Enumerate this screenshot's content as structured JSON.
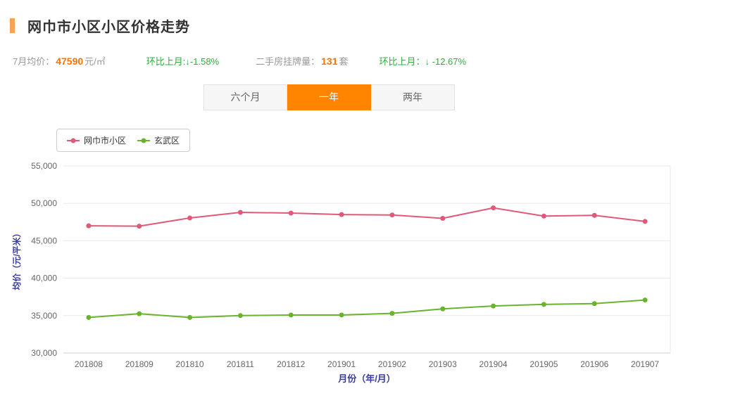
{
  "page": {
    "title": "网巾市小区小区价格走势"
  },
  "stats": {
    "avg_price_label": "7月均价：",
    "avg_price_value": "47590",
    "avg_price_unit": "元/㎡",
    "mom_price_label": "环比上月:",
    "mom_price_value": "↓-1.58%",
    "listing_label": "二手房挂牌量：",
    "listing_value": "131",
    "listing_unit": "套",
    "mom_listing_label": "环比上月：",
    "mom_listing_value": "↓ -12.67%"
  },
  "tabs": [
    {
      "label": "六个月",
      "active": false
    },
    {
      "label": "一年",
      "active": true
    },
    {
      "label": "两年",
      "active": false
    }
  ],
  "legend": [
    {
      "label": "网巾市小区",
      "color": "#e15979"
    },
    {
      "label": "玄武区",
      "color": "#69b42c"
    }
  ],
  "colors": {
    "accent_orange": "#f9a254",
    "active_tab_orange": "#ff8400",
    "value_orange": "#ff7300",
    "change_green": "#2fae3c",
    "series_pink": "#e15979",
    "series_green": "#69b42c",
    "axis_title_blue": "#3a3a9f",
    "gridline": "#e8e8e8"
  },
  "chart_data": {
    "type": "line",
    "categories": [
      "201808",
      "201809",
      "201810",
      "201811",
      "201812",
      "201901",
      "201902",
      "201903",
      "201904",
      "201905",
      "201906",
      "201907"
    ],
    "series": [
      {
        "name": "网巾市小区",
        "color": "#e15979",
        "values": [
          47000,
          46950,
          48050,
          48800,
          48700,
          48500,
          48450,
          48000,
          49400,
          48300,
          48400,
          47590
        ]
      },
      {
        "name": "玄武区",
        "color": "#69b42c",
        "values": [
          34750,
          35250,
          34750,
          35000,
          35080,
          35080,
          35300,
          35900,
          36280,
          36500,
          36600,
          37080
        ]
      }
    ],
    "title": "",
    "xlabel": "月份（年/月）",
    "ylabel": "均价（元/平米）",
    "ylim": [
      30000,
      55000
    ],
    "ytick_step": 5000,
    "grid": true,
    "legend_position": "top-left"
  }
}
